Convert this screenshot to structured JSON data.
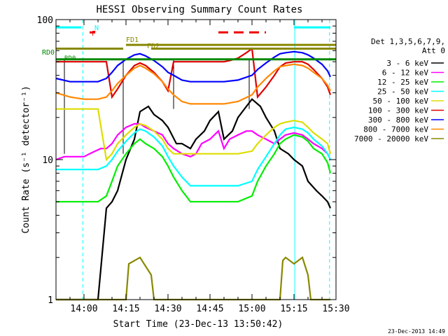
{
  "chart_data": {
    "type": "line",
    "title": "HESSI Observing Summary Count Rates",
    "xlabel": "Start Time (23-Dec-13 13:50:42)",
    "ylabel": "Count Rate (s⁻¹ detector⁻¹)",
    "footer_timestamp": "23-Dec-2013 14:49",
    "x_range_minutes_after_1350": [
      0,
      100
    ],
    "y_range": [
      1,
      100
    ],
    "y_scale": "log",
    "x_ticks": [
      {
        "label": "14:00",
        "min": 10
      },
      {
        "label": "14:15",
        "min": 25
      },
      {
        "label": "14:30",
        "min": 40
      },
      {
        "label": "14:45",
        "min": 55
      },
      {
        "label": "15:00",
        "min": 70
      },
      {
        "label": "15:15",
        "min": 85
      },
      {
        "label": "15:30",
        "min": 100
      }
    ],
    "y_ticks": [
      {
        "label": "1",
        "value": 1
      },
      {
        "label": "10",
        "value": 10
      },
      {
        "label": "100",
        "value": 100
      }
    ],
    "legend": {
      "position": "right",
      "header": [
        "Det 1,3,5,6,7,9,",
        "Att 0"
      ],
      "entries": [
        {
          "label": "3 - 6 keV",
          "color": "#000000"
        },
        {
          "label": "6 - 12 keV",
          "color": "#ff00ff"
        },
        {
          "label": "12 - 25 keV",
          "color": "#00ee00"
        },
        {
          "label": "25 - 50 keV",
          "color": "#00ffff"
        },
        {
          "label": "50 - 100 keV",
          "color": "#dddd00"
        },
        {
          "label": "100 - 300 keV",
          "color": "#dd0000"
        },
        {
          "label": "300 - 800 keV",
          "color": "#0000ff"
        },
        {
          "label": "800 - 7000 keV",
          "color": "#ff8800"
        },
        {
          "label": "7000 - 20000 keV",
          "color": "#888800"
        }
      ]
    },
    "flag_labels": {
      "N": {
        "text": "N",
        "color": "#00ffff"
      },
      "F": {
        "text": "F",
        "color": "#ee0000"
      },
      "FD1": {
        "text": "FD1",
        "color": "#888800"
      },
      "FD2": {
        "text": "FD2",
        "color": "#888800"
      },
      "RD0": {
        "text": "RD0",
        "color": "#008800"
      },
      "RD0b": {
        "text": "RD0",
        "color": "#008800"
      }
    },
    "series": [
      {
        "name": "3 - 6 keV",
        "color": "#000000",
        "x": [
          0,
          5,
          10,
          13,
          15,
          18,
          20,
          22,
          25,
          28,
          30,
          33,
          35,
          38,
          40,
          43,
          45,
          48,
          50,
          53,
          55,
          58,
          60,
          63,
          65,
          68,
          70,
          73,
          75,
          78,
          80,
          83,
          85,
          88,
          90,
          93,
          95,
          97,
          98
        ],
        "y": [
          1,
          1,
          1,
          1,
          1,
          4.5,
          5,
          6,
          10,
          14,
          22,
          24,
          21,
          19,
          17,
          13,
          13,
          12,
          14,
          16,
          19,
          22,
          14,
          16,
          20,
          24,
          27,
          24,
          20,
          16,
          12,
          11,
          10,
          9,
          7,
          6,
          5.5,
          5,
          4.5
        ]
      },
      {
        "name": "6 - 12 keV",
        "color": "#ff00ff",
        "x": [
          0,
          3,
          6,
          8,
          10,
          12,
          14,
          16,
          18,
          20,
          22,
          25,
          28,
          30,
          32,
          35,
          38,
          40,
          42,
          45,
          48,
          50,
          52,
          55,
          58,
          60,
          62,
          65,
          68,
          70,
          72,
          75,
          78,
          80,
          82,
          85,
          88,
          90,
          92,
          95,
          97,
          98
        ],
        "y": [
          10,
          10.5,
          10.5,
          10.5,
          10.5,
          11,
          11.5,
          12,
          12,
          13,
          15,
          17,
          18,
          18,
          17,
          16,
          15,
          13,
          12,
          11,
          10.5,
          11,
          13,
          14,
          16,
          12,
          14,
          15,
          16,
          16,
          15,
          14,
          13,
          14,
          15,
          15.5,
          15,
          14,
          13,
          12,
          11,
          10
        ]
      },
      {
        "name": "12 - 25 keV",
        "color": "#00ee00",
        "x": [
          0,
          5,
          10,
          15,
          18,
          20,
          22,
          25,
          28,
          30,
          32,
          35,
          38,
          40,
          42,
          45,
          48,
          50,
          55,
          60,
          65,
          70,
          72,
          75,
          78,
          80,
          82,
          85,
          88,
          90,
          92,
          95,
          97,
          98
        ],
        "y": [
          5,
          5,
          5,
          5,
          5.5,
          7,
          9,
          11,
          13,
          14,
          13,
          12,
          10.5,
          9,
          7.5,
          6,
          5,
          5,
          5,
          5,
          5,
          5.5,
          7,
          9,
          11,
          13,
          14,
          15,
          14.5,
          13.5,
          12,
          11,
          9.5,
          8
        ]
      },
      {
        "name": "25 - 50 keV",
        "color": "#00ffff",
        "x": [
          0,
          5,
          10,
          15,
          18,
          20,
          22,
          25,
          28,
          30,
          32,
          35,
          38,
          40,
          42,
          45,
          48,
          50,
          55,
          60,
          65,
          70,
          72,
          75,
          78,
          80,
          82,
          85,
          88,
          90,
          92,
          95,
          97,
          98
        ],
        "y": [
          8.5,
          8.5,
          8.5,
          8.5,
          9,
          10,
          11.5,
          13.5,
          15.5,
          16.5,
          16,
          14.5,
          12.5,
          10.5,
          9,
          7.5,
          6.5,
          6.5,
          6.5,
          6.5,
          6.5,
          7,
          8.5,
          10.5,
          13,
          15,
          16.5,
          17,
          16.5,
          15.5,
          14,
          12.5,
          11,
          10
        ]
      },
      {
        "name": "50 - 100 keV",
        "color": "#dddd00",
        "x": [
          0,
          5,
          10,
          15,
          18,
          20,
          22,
          25,
          28,
          30,
          32,
          35,
          38,
          40,
          42,
          45,
          48,
          50,
          55,
          60,
          65,
          70,
          72,
          75,
          78,
          80,
          82,
          85,
          88,
          90,
          92,
          95,
          97,
          98
        ],
        "y": [
          23,
          23,
          23,
          23,
          10,
          11,
          13,
          15,
          17,
          18,
          17.5,
          16,
          14,
          12,
          11,
          11,
          11,
          11,
          11,
          11,
          11,
          11.5,
          13,
          15,
          17,
          18,
          18.5,
          19,
          18.5,
          17,
          15.5,
          14,
          13,
          11
        ]
      },
      {
        "name": "100 - 300 keV",
        "color": "#dd0000",
        "x": [
          0,
          5,
          10,
          15,
          18,
          20,
          22,
          25,
          28,
          30,
          32,
          35,
          38,
          40,
          42,
          45,
          48,
          50,
          55,
          60,
          62,
          65,
          68,
          70,
          72,
          75,
          78,
          80,
          82,
          85,
          88,
          90,
          92,
          95,
          97,
          98
        ],
        "y": [
          50,
          50,
          50,
          50,
          50,
          28,
          32,
          40,
          47,
          49,
          47,
          42,
          36,
          31,
          50,
          50,
          50,
          50,
          50,
          50,
          51,
          53,
          58,
          62,
          28,
          33,
          40,
          46,
          49,
          50,
          50,
          48,
          44,
          38,
          33,
          29
        ]
      },
      {
        "name": "300 - 800 keV",
        "color": "#0000ff",
        "x": [
          0,
          5,
          10,
          15,
          18,
          20,
          22,
          25,
          28,
          30,
          32,
          35,
          38,
          40,
          42,
          45,
          48,
          50,
          55,
          60,
          65,
          70,
          72,
          75,
          78,
          80,
          82,
          85,
          88,
          90,
          92,
          95,
          97,
          98
        ],
        "y": [
          38,
          36,
          36,
          36,
          38,
          42,
          47,
          52,
          56,
          57,
          55,
          51,
          46,
          42,
          40,
          37,
          36,
          36,
          36,
          36,
          37,
          40,
          44,
          49,
          54,
          57,
          58,
          59,
          58,
          56,
          53,
          48,
          43,
          39
        ]
      },
      {
        "name": "800 - 7000 keV",
        "color": "#ff8800",
        "x": [
          0,
          5,
          10,
          15,
          18,
          20,
          22,
          25,
          28,
          30,
          32,
          35,
          38,
          40,
          42,
          45,
          48,
          50,
          55,
          60,
          65,
          70,
          72,
          75,
          78,
          80,
          82,
          85,
          88,
          90,
          92,
          95,
          97,
          98
        ],
        "y": [
          30,
          28,
          27,
          27,
          28,
          31,
          35,
          40,
          45,
          47,
          45,
          41,
          36,
          32,
          29,
          26,
          25,
          25,
          25,
          25,
          26,
          29,
          33,
          38,
          43,
          46,
          47,
          48,
          47,
          45,
          42,
          38,
          34,
          31
        ]
      },
      {
        "name": "7000 - 20000 keV",
        "color": "#888800",
        "x": [
          0,
          20,
          25,
          26,
          30,
          34,
          35,
          40,
          55,
          60,
          70,
          80,
          81,
          82,
          85,
          88,
          90,
          91,
          98
        ],
        "y": [
          1,
          1,
          1,
          1.8,
          2,
          1.5,
          1,
          1,
          1,
          1,
          1,
          1,
          1.9,
          2,
          1.8,
          2,
          1.5,
          1,
          1
        ]
      }
    ],
    "flag_bars": [
      {
        "name": "N",
        "color": "#00ffff",
        "style": "solid",
        "segments": [
          [
            0,
            9
          ],
          [
            85,
            98
          ]
        ],
        "y": 88
      },
      {
        "name": "F",
        "color": "#ee0000",
        "style": "dashed",
        "segments": [
          [
            12,
            14
          ],
          [
            58,
            75
          ]
        ],
        "y": 81
      },
      {
        "name": "FD1",
        "color": "#888800",
        "style": "solid",
        "segments": [
          [
            25,
            100
          ]
        ],
        "y": 66
      },
      {
        "name": "FD2",
        "color": "#888800",
        "style": "solid",
        "segments": [
          [
            0,
            24
          ],
          [
            34,
            100
          ]
        ],
        "y": 62
      },
      {
        "name": "RD0",
        "color": "#008800",
        "style": "solid",
        "segments": [
          [
            0,
            100
          ]
        ],
        "y": 52
      }
    ],
    "saa_boxes": [
      {
        "x0": 3,
        "x1": 24,
        "y0": 11,
        "y1": 52
      },
      {
        "x0": 42,
        "x1": 69,
        "y0": 23,
        "y1": 52
      }
    ],
    "vertical_lines": [
      {
        "x": 0,
        "color": "#00ffff",
        "style": "solid"
      },
      {
        "x": 9.6,
        "color": "#00ffff",
        "style": "dashed"
      },
      {
        "x": 85.3,
        "color": "#00ffff",
        "style": "solid"
      },
      {
        "x": 97.7,
        "color": "#00ffff",
        "style": "dashed"
      }
    ]
  }
}
